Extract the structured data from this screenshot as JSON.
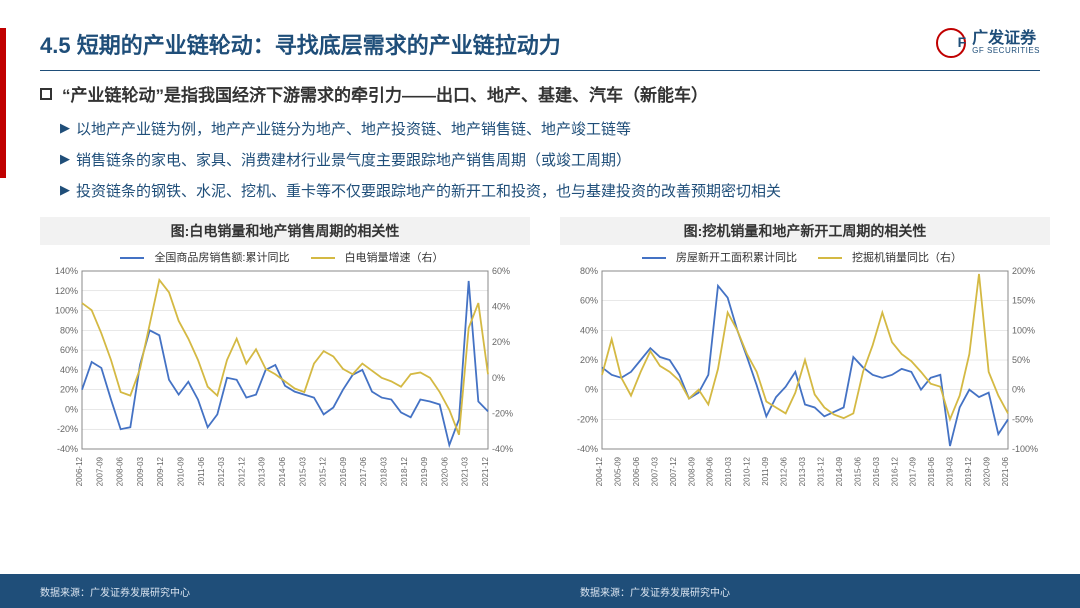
{
  "header": {
    "title": "4.5 短期的产业链轮动：寻找底层需求的产业链拉动力",
    "logo_cn": "广发证券",
    "logo_en": "GF SECURITIES"
  },
  "subtitle": "“产业链轮动”是指我国经济下游需求的牵引力——出口、地产、基建、汽车（新能车）",
  "bullets": [
    "以地产产业链为例，地产产业链分为地产、地产投资链、地产销售链、地产竣工链等",
    "销售链条的家电、家具、消费建材行业景气度主要跟踪地产销售周期（或竣工周期）",
    "投资链条的钢铁、水泥、挖机、重卡等不仅要跟踪地产的新开工和投资，也与基建投资的改善预期密切相关"
  ],
  "chart_left": {
    "type": "line",
    "title": "图:白电销量和地产销售周期的相关性",
    "legend": [
      "全国商品房销售额:累计同比",
      "白电销量增速（右）"
    ],
    "colors": {
      "series1": "#4472c4",
      "series2": "#d4b943",
      "grid": "#d0d0d0",
      "bg": "#ffffff"
    },
    "x_labels": [
      "2006-12",
      "2007-09",
      "2008-06",
      "2009-03",
      "2009-12",
      "2010-09",
      "2011-06",
      "2012-03",
      "2012-12",
      "2013-09",
      "2014-06",
      "2015-03",
      "2015-12",
      "2016-09",
      "2017-06",
      "2018-03",
      "2018-12",
      "2019-09",
      "2020-06",
      "2021-03",
      "2021-12"
    ],
    "y_left": {
      "min": -40,
      "max": 140,
      "step": 20,
      "suffix": "%"
    },
    "y_right": {
      "min": -40,
      "max": 60,
      "step": 20,
      "suffix": "%"
    },
    "series1": [
      20,
      48,
      42,
      10,
      -20,
      -18,
      45,
      80,
      75,
      30,
      15,
      28,
      10,
      -18,
      -5,
      32,
      30,
      12,
      15,
      40,
      45,
      24,
      18,
      15,
      12,
      -5,
      2,
      20,
      35,
      40,
      18,
      12,
      10,
      -3,
      -8,
      10,
      8,
      5,
      -36,
      -10,
      130,
      8,
      -2
    ],
    "series2": [
      42,
      38,
      25,
      10,
      -8,
      -10,
      5,
      30,
      55,
      48,
      32,
      22,
      10,
      -5,
      -10,
      10,
      22,
      8,
      16,
      5,
      2,
      -2,
      -6,
      -8,
      8,
      15,
      12,
      5,
      2,
      8,
      4,
      0,
      -2,
      -5,
      2,
      3,
      0,
      -8,
      -18,
      -32,
      28,
      42,
      2
    ]
  },
  "chart_right": {
    "type": "line",
    "title": "图:挖机销量和地产新开工周期的相关性",
    "legend": [
      "房屋新开工面积累计同比",
      "挖掘机销量同比（右）"
    ],
    "colors": {
      "series1": "#4472c4",
      "series2": "#d4b943",
      "grid": "#d0d0d0",
      "bg": "#ffffff"
    },
    "x_labels": [
      "2004-12",
      "2005-09",
      "2006-06",
      "2007-03",
      "2007-12",
      "2008-09",
      "2009-06",
      "2010-03",
      "2010-12",
      "2011-09",
      "2012-06",
      "2013-03",
      "2013-12",
      "2014-09",
      "2015-06",
      "2016-03",
      "2016-12",
      "2017-09",
      "2018-06",
      "2019-03",
      "2019-12",
      "2020-09",
      "2021-06"
    ],
    "y_left": {
      "min": -40,
      "max": 80,
      "step": 20,
      "suffix": "%"
    },
    "y_right": {
      "min": -100,
      "max": 200,
      "step": 50,
      "suffix": "%"
    },
    "series1": [
      15,
      10,
      8,
      12,
      20,
      28,
      22,
      20,
      10,
      -6,
      -2,
      10,
      70,
      62,
      40,
      22,
      3,
      -18,
      -5,
      2,
      12,
      -10,
      -12,
      -18,
      -15,
      -12,
      22,
      15,
      10,
      8,
      10,
      14,
      12,
      0,
      8,
      10,
      -38,
      -12,
      0,
      -5,
      -2,
      -30,
      -20
    ],
    "series2": [
      25,
      85,
      20,
      -10,
      30,
      65,
      40,
      30,
      15,
      -15,
      0,
      -25,
      35,
      130,
      100,
      60,
      30,
      -20,
      -30,
      -40,
      -5,
      50,
      -8,
      -30,
      -42,
      -48,
      -40,
      30,
      75,
      130,
      80,
      60,
      48,
      30,
      10,
      5,
      -50,
      -10,
      60,
      195,
      30,
      -10,
      -40
    ]
  },
  "footer": {
    "source": "数据来源：广发证券发展研究中心"
  }
}
